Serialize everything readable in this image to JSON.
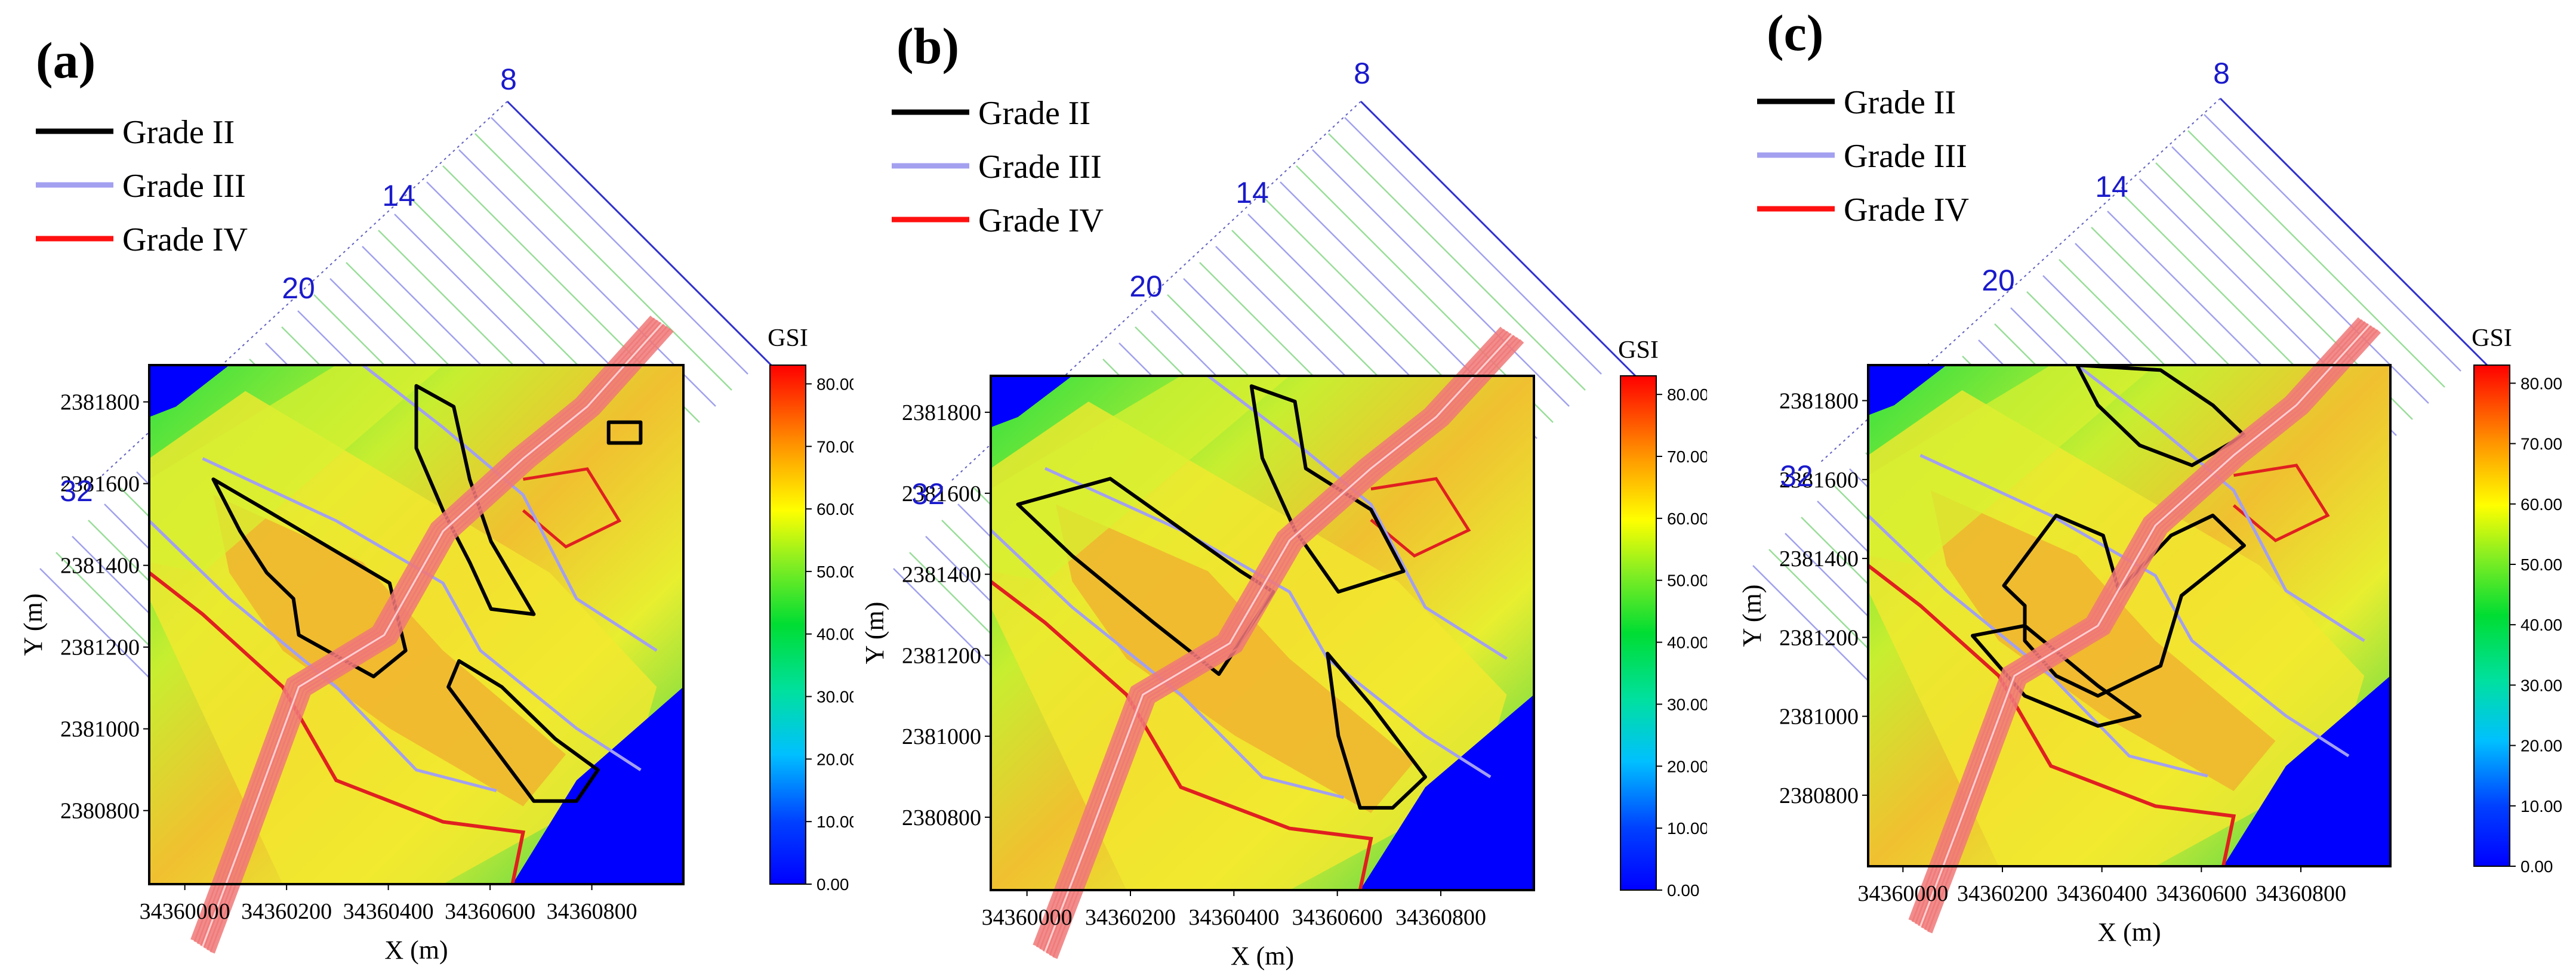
{
  "legend": [
    {
      "label": "Grade II",
      "color": "#000000"
    },
    {
      "label": "Grade III",
      "color": "#a3a0f0"
    },
    {
      "label": "Grade IV",
      "color": "#ff1010"
    }
  ],
  "colors": {
    "grade2": "#000000",
    "grade3": "#a3a0f0",
    "grade4": "#e02020",
    "water": "#0000ff",
    "low": "#00cc44",
    "mid": "#e8ee20",
    "high": "#f0a020",
    "peak": "#f06020",
    "fault": "#f07878",
    "profile_blue": "#3030d0",
    "profile_green": "#66cc66"
  },
  "chart_data": [
    {
      "type": "heatmap",
      "panel": "(a)",
      "xlabel": "X (m)",
      "ylabel": "Y (m)",
      "x_ticks": [
        "34360000",
        "34360200",
        "34360400",
        "34360600",
        "34360800"
      ],
      "y_ticks": [
        "2381800",
        "2381600",
        "2381400",
        "2381200",
        "2381000",
        "2380800"
      ],
      "xlim": [
        34359930,
        34360980
      ],
      "ylim": [
        2380620,
        2381890
      ],
      "colorbar": {
        "title": "GSI",
        "ticks": [
          "80.00",
          "70.00",
          "60.00",
          "50.00",
          "40.00",
          "30.00",
          "20.00",
          "10.00",
          "0.00"
        ],
        "range": [
          0,
          83
        ]
      },
      "profile_labels": [
        "8",
        "14",
        "20",
        "32"
      ]
    },
    {
      "type": "heatmap",
      "panel": "(b)",
      "xlabel": "X (m)",
      "ylabel": "Y (m)",
      "x_ticks": [
        "34360000",
        "34360200",
        "34360400",
        "34360600",
        "34360800"
      ],
      "y_ticks": [
        "2381800",
        "2381600",
        "2381400",
        "2381200",
        "2381000",
        "2380800"
      ],
      "xlim": [
        34359930,
        34360980
      ],
      "ylim": [
        2380620,
        2381890
      ],
      "colorbar": {
        "title": "GSI",
        "ticks": [
          "80.00",
          "70.00",
          "60.00",
          "50.00",
          "40.00",
          "30.00",
          "20.00",
          "10.00",
          "0.00"
        ],
        "range": [
          0,
          83
        ]
      },
      "profile_labels": [
        "8",
        "14",
        "20",
        "32"
      ]
    },
    {
      "type": "heatmap",
      "panel": "(c)",
      "xlabel": "X (m)",
      "ylabel": "Y (m)",
      "x_ticks": [
        "34360000",
        "34360200",
        "34360400",
        "34360600",
        "34360800"
      ],
      "y_ticks": [
        "2381800",
        "2381600",
        "2381400",
        "2381200",
        "2381000",
        "2380800"
      ],
      "xlim": [
        34359930,
        34360980
      ],
      "ylim": [
        2380620,
        2381890
      ],
      "colorbar": {
        "title": "GSI",
        "ticks": [
          "80.00",
          "70.00",
          "60.00",
          "50.00",
          "40.00",
          "30.00",
          "20.00",
          "10.00",
          "0.00"
        ],
        "range": [
          0,
          83
        ]
      },
      "profile_labels": [
        "8",
        "14",
        "20",
        "32"
      ]
    }
  ]
}
